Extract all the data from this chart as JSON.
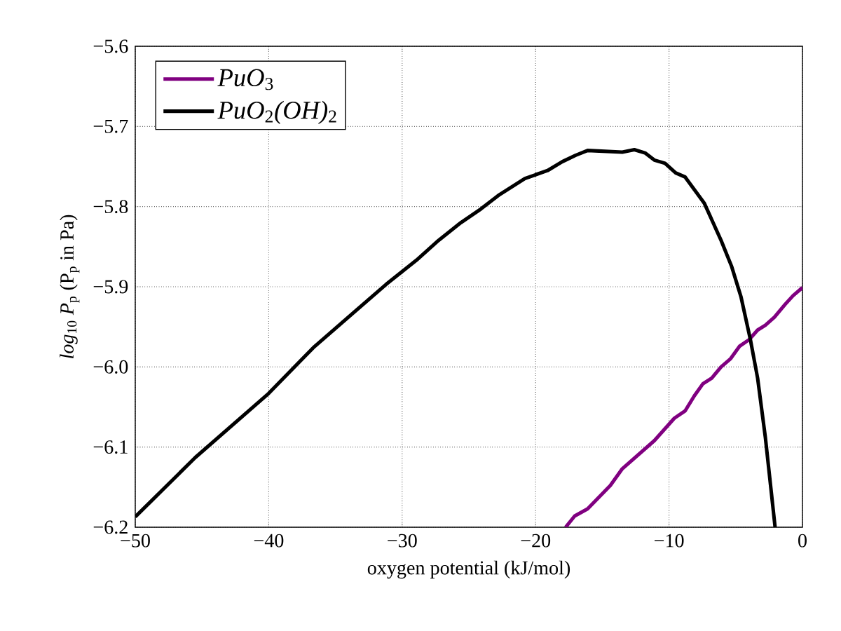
{
  "chart_data": {
    "type": "line",
    "xlabel": "oxygen potential (kJ/mol)",
    "ylabel": "*log*$_{10}$ *P*$_{p}$ (P$_{p}$ in Pa)",
    "xlim": [
      -50,
      0
    ],
    "ylim": [
      -6.2,
      -5.6
    ],
    "xticks": [
      {
        "value": -50,
        "label": "−50"
      },
      {
        "value": -40,
        "label": "−40"
      },
      {
        "value": -30,
        "label": "−30"
      },
      {
        "value": -20,
        "label": "−20"
      },
      {
        "value": -10,
        "label": "−10"
      },
      0
    ],
    "yticks": [
      {
        "value": -6.2,
        "label": "−6.2"
      },
      {
        "value": -6.1,
        "label": "−6.1"
      },
      {
        "value": -6.0,
        "label": "−6.0"
      },
      {
        "value": -5.9,
        "label": "−5.9"
      },
      {
        "value": -5.8,
        "label": "−5.8"
      },
      {
        "value": -5.7,
        "label": "−5.7"
      },
      {
        "value": -5.6,
        "label": "−5.6"
      }
    ],
    "grid": true,
    "legend": "top left",
    "line_style": "solid",
    "series": [
      {
        "name": "*PuO*$_{3}$",
        "color": "#800080",
        "x": [
          -17.75,
          -17.07,
          -16.1,
          -14.4,
          -13.5,
          -11.1,
          -9.6,
          -8.8,
          -8.1,
          -7.46,
          -6.8,
          -6.1,
          -5.4,
          -4.7,
          -4.0,
          -3.36,
          -2.78,
          -2.1,
          -1.3,
          -0.7,
          0
        ],
        "values": [
          -6.2,
          -6.186,
          -6.177,
          -6.148,
          -6.127,
          -6.092,
          -6.064,
          -6.055,
          -6.036,
          -6.021,
          -6.014,
          -6.0,
          -5.99,
          -5.974,
          -5.966,
          -5.954,
          -5.948,
          -5.938,
          -5.922,
          -5.911,
          -5.901
        ]
      },
      {
        "name": "*PuO*$_{2}$*(OH)*$_{2}$",
        "color": "#000000",
        "x": [
          -50,
          -45.5,
          -40.0,
          -36.66,
          -31.2,
          -28.94,
          -27.26,
          -25.6,
          -24.1,
          -22.7,
          -20.8,
          -19.1,
          -18.0,
          -17.0,
          -16.1,
          -13.5,
          -12.6,
          -11.8,
          -11.1,
          -10.3,
          -9.5,
          -8.8,
          -7.35,
          -6.1,
          -5.3,
          -4.6,
          -3.9,
          -3.36,
          -2.78,
          -2.05
        ],
        "values": [
          -6.187,
          -6.113,
          -6.033,
          -5.976,
          -5.897,
          -5.867,
          -5.842,
          -5.82,
          -5.803,
          -5.785,
          -5.765,
          -5.755,
          -5.744,
          -5.736,
          -5.73,
          -5.732,
          -5.729,
          -5.733,
          -5.742,
          -5.746,
          -5.758,
          -5.763,
          -5.796,
          -5.842,
          -5.875,
          -5.913,
          -5.966,
          -6.014,
          -6.088,
          -6.2
        ]
      }
    ]
  }
}
